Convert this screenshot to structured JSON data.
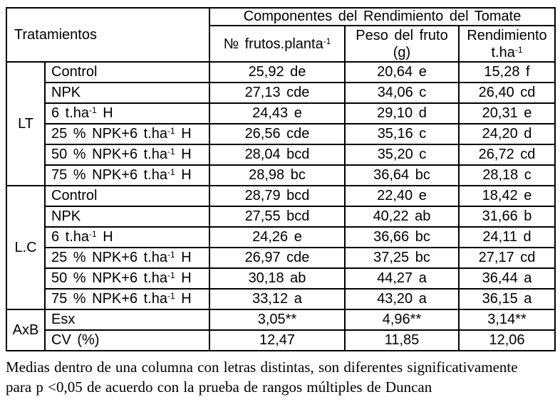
{
  "header": {
    "treatments_label": "Tratamientos",
    "components_label": "Componentes del Rendimiento del Tomate",
    "col_fruits": "№ frutos.planta^-1^",
    "col_weight_line1": "Peso del fruto",
    "col_weight_line2": "(g)",
    "col_yield_line1": "Rendimiento",
    "col_yield_line2": "t.ha^-1^"
  },
  "groups": [
    {
      "label": "LT",
      "rows": [
        {
          "treatment": "Control",
          "fruits": "25,92 de",
          "weight": "20,64 e",
          "yield": "15,28 f"
        },
        {
          "treatment": "NPK",
          "fruits": "27,13 cde",
          "weight": "34,06 c",
          "yield": "26,40 cd"
        },
        {
          "treatment": "6 t.ha^-1^ H",
          "fruits": "24,43 e",
          "weight": "29,10 d",
          "yield": "20,31 e"
        },
        {
          "treatment": "25 % NPK+6 t.ha^-1^ H",
          "fruits": "26,56 cde",
          "weight": "35,16 c",
          "yield": "24,20 d"
        },
        {
          "treatment": "50 % NPK+6 t.ha^-1^ H",
          "fruits": "28,04 bcd",
          "weight": "35,20 c",
          "yield": "26,72 cd"
        },
        {
          "treatment": "75 % NPK+6 t.ha^-1^ H",
          "fruits": "28,98 bc",
          "weight": "36,64 bc",
          "yield": "28,18 c"
        }
      ]
    },
    {
      "label": "L.C",
      "rows": [
        {
          "treatment": "Control",
          "fruits": "28,79 bcd",
          "weight": "22,40 e",
          "yield": "18,42 e"
        },
        {
          "treatment": "NPK",
          "fruits": "27,55 bcd",
          "weight": "40,22 ab",
          "yield": "31,66 b"
        },
        {
          "treatment": "6 t.ha^-1^ H",
          "fruits": "24,26 e",
          "weight": "36,66 bc",
          "yield": "24,11 d"
        },
        {
          "treatment": "25 % NPK+6 t.ha^-1^ H",
          "fruits": "26,97 cde",
          "weight": "37,25 bc",
          "yield": "27,17 cd"
        },
        {
          "treatment": "50 % NPK+6 t.ha^-1^ H",
          "fruits": "30,18 ab",
          "weight": "44,27 a",
          "yield": "36,44 a"
        },
        {
          "treatment": "75 % NPK+6 t.ha^-1^ H",
          "fruits": "33,12 a",
          "weight": "43,20 a",
          "yield": "36,15 a"
        }
      ]
    },
    {
      "label": "AxB",
      "rows": [
        {
          "treatment": "Esx",
          "fruits": "3,05**",
          "weight": "4,96**",
          "yield": "3,14**"
        },
        {
          "treatment": "CV (%)",
          "fruits": "12,47",
          "weight": "11,85",
          "yield": "12,06"
        }
      ]
    }
  ],
  "footnote": {
    "line1": "Medias dentro de una columna con letras distintas, son diferentes significativamente",
    "line2": "para p <0,05 de acuerdo con la prueba de rangos múltiples de Duncan"
  },
  "colors": {
    "text": "#000000",
    "border": "#000000",
    "background": "#ffffff"
  }
}
